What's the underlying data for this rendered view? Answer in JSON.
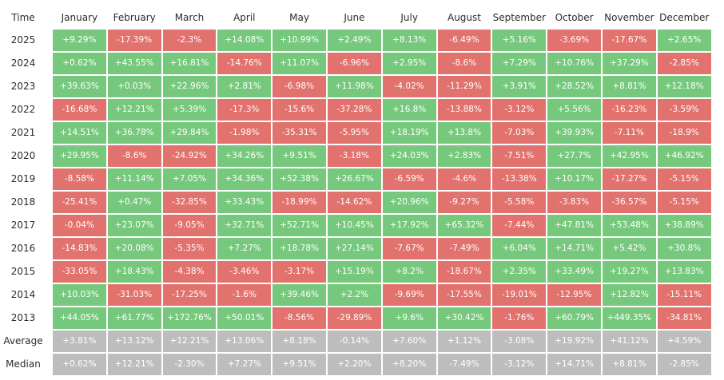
{
  "chart_data": {
    "type": "heatmap",
    "corner_label": "Time",
    "columns": [
      "January",
      "February",
      "March",
      "April",
      "May",
      "June",
      "July",
      "August",
      "September",
      "October",
      "November",
      "December"
    ],
    "rows": [
      {
        "label": "2025",
        "values": [
          "+9.29%",
          "-17.39%",
          "-2.3%",
          "+14.08%",
          "+10.99%",
          "+2.49%",
          "+8.13%",
          "-6.49%",
          "+5.16%",
          "-3.69%",
          "-17.67%",
          "+2.65%"
        ]
      },
      {
        "label": "2024",
        "values": [
          "+0.62%",
          "+43.55%",
          "+16.81%",
          "-14.76%",
          "+11.07%",
          "-6.96%",
          "+2.95%",
          "-8.6%",
          "+7.29%",
          "+10.76%",
          "+37.29%",
          "-2.85%"
        ]
      },
      {
        "label": "2023",
        "values": [
          "+39.63%",
          "+0.03%",
          "+22.96%",
          "+2.81%",
          "-6.98%",
          "+11.98%",
          "-4.02%",
          "-11.29%",
          "+3.91%",
          "+28.52%",
          "+8.81%",
          "+12.18%"
        ]
      },
      {
        "label": "2022",
        "values": [
          "-16.68%",
          "+12.21%",
          "+5.39%",
          "-17.3%",
          "-15.6%",
          "-37.28%",
          "+16.8%",
          "-13.88%",
          "-3.12%",
          "+5.56%",
          "-16.23%",
          "-3.59%"
        ]
      },
      {
        "label": "2021",
        "values": [
          "+14.51%",
          "+36.78%",
          "+29.84%",
          "-1.98%",
          "-35.31%",
          "-5.95%",
          "+18.19%",
          "+13.8%",
          "-7.03%",
          "+39.93%",
          "-7.11%",
          "-18.9%"
        ]
      },
      {
        "label": "2020",
        "values": [
          "+29.95%",
          "-8.6%",
          "-24.92%",
          "+34.26%",
          "+9.51%",
          "-3.18%",
          "+24.03%",
          "+2.83%",
          "-7.51%",
          "+27.7%",
          "+42.95%",
          "+46.92%"
        ]
      },
      {
        "label": "2019",
        "values": [
          "-8.58%",
          "+11.14%",
          "+7.05%",
          "+34.36%",
          "+52.38%",
          "+26.67%",
          "-6.59%",
          "-4.6%",
          "-13.38%",
          "+10.17%",
          "-17.27%",
          "-5.15%"
        ]
      },
      {
        "label": "2018",
        "values": [
          "-25.41%",
          "+0.47%",
          "-32.85%",
          "+33.43%",
          "-18.99%",
          "-14.62%",
          "+20.96%",
          "-9.27%",
          "-5.58%",
          "-3.83%",
          "-36.57%",
          "-5.15%"
        ]
      },
      {
        "label": "2017",
        "values": [
          "-0.04%",
          "+23.07%",
          "-9.05%",
          "+32.71%",
          "+52.71%",
          "+10.45%",
          "+17.92%",
          "+65.32%",
          "-7.44%",
          "+47.81%",
          "+53.48%",
          "+38.89%"
        ]
      },
      {
        "label": "2016",
        "values": [
          "-14.83%",
          "+20.08%",
          "-5.35%",
          "+7.27%",
          "+18.78%",
          "+27.14%",
          "-7.67%",
          "-7.49%",
          "+6.04%",
          "+14.71%",
          "+5.42%",
          "+30.8%"
        ]
      },
      {
        "label": "2015",
        "values": [
          "-33.05%",
          "+18.43%",
          "-4.38%",
          "-3.46%",
          "-3.17%",
          "+15.19%",
          "+8.2%",
          "-18.67%",
          "+2.35%",
          "+33.49%",
          "+19.27%",
          "+13.83%"
        ]
      },
      {
        "label": "2014",
        "values": [
          "+10.03%",
          "-31.03%",
          "-17.25%",
          "-1.6%",
          "+39.46%",
          "+2.2%",
          "-9.69%",
          "-17.55%",
          "-19.01%",
          "-12.95%",
          "+12.82%",
          "-15.11%"
        ]
      },
      {
        "label": "2013",
        "values": [
          "+44.05%",
          "+61.77%",
          "+172.76%",
          "+50.01%",
          "-8.56%",
          "-29.89%",
          "+9.6%",
          "+30.42%",
          "-1.76%",
          "+60.79%",
          "+449.35%",
          "-34.81%"
        ]
      }
    ],
    "summary_rows": [
      {
        "label": "Average",
        "values": [
          "+3.81%",
          "+13.12%",
          "+12.21%",
          "+13.06%",
          "+8.18%",
          "-0.14%",
          "+7.60%",
          "+1.12%",
          "-3.08%",
          "+19.92%",
          "+41.12%",
          "+4.59%"
        ]
      },
      {
        "label": "Median",
        "values": [
          "+0.62%",
          "+12.21%",
          "-2.30%",
          "+7.27%",
          "+9.51%",
          "+2.20%",
          "+8.20%",
          "-7.49%",
          "-3.12%",
          "+14.71%",
          "+8.81%",
          "-2.85%"
        ]
      }
    ],
    "colors": {
      "positive": "#76c97c",
      "negative": "#e2726d",
      "summary": "#bdbdbd",
      "header_text": "#2b2b2b",
      "cell_text": "#ffffff"
    }
  }
}
